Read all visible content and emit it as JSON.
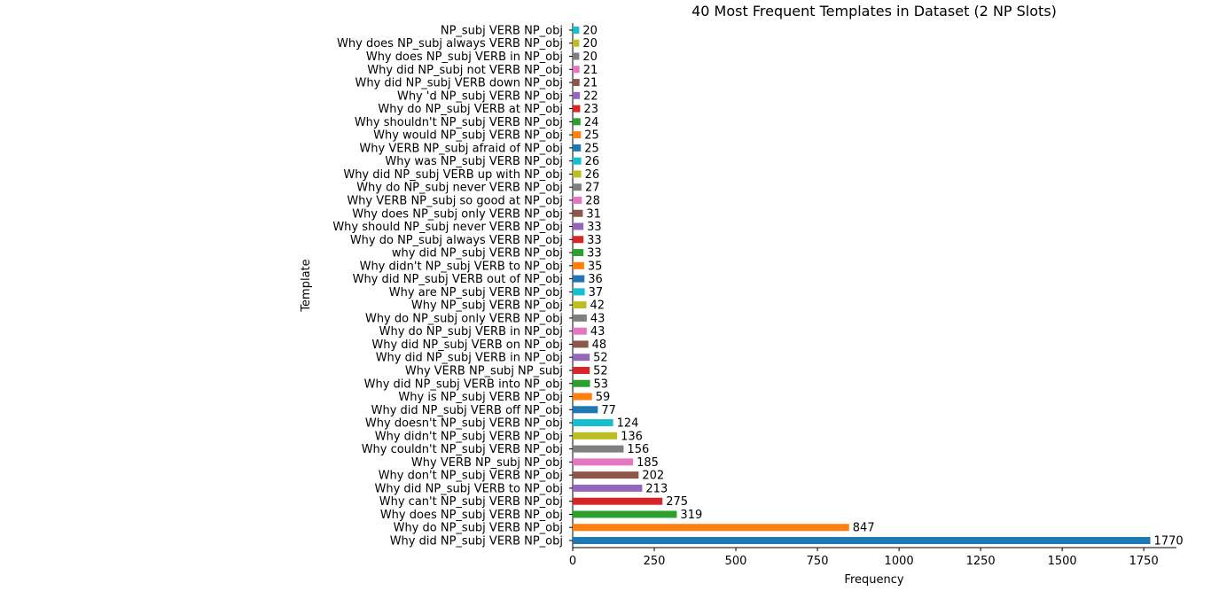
{
  "chart_data": {
    "type": "bar",
    "orientation": "horizontal",
    "title": "40 Most Frequent Templates in Dataset (2 NP Slots)",
    "xlabel": "Frequency",
    "ylabel": "Template",
    "xlim": [
      0,
      1850
    ],
    "xticks": [
      0,
      250,
      500,
      750,
      1000,
      1250,
      1500,
      1750
    ],
    "grid": false,
    "legend": "none",
    "categories": [
      "Why did NP_subj VERB NP_obj",
      "Why do NP_subj VERB NP_obj",
      "Why does NP_subj VERB NP_obj",
      "Why can't NP_subj VERB NP_obj",
      "Why did NP_subj VERB to NP_obj",
      "Why don't NP_subj VERB NP_obj",
      "Why VERB NP_subj NP_obj",
      "Why couldn't NP_subj VERB NP_obj",
      "Why didn't NP_subj VERB NP_obj",
      "Why doesn't NP_subj VERB NP_obj",
      "Why did NP_subj VERB off NP_obj",
      "Why is NP_subj VERB NP_obj",
      "Why did NP_subj VERB into NP_obj",
      "Why VERB NP_subj NP_subj",
      "Why did NP_subj VERB in NP_obj",
      "Why did NP_subj VERB on NP_obj",
      "Why do NP_subj VERB in NP_obj",
      "Why do NP_subj only VERB NP_obj",
      "Why NP_subj VERB NP_obj",
      "Why are NP_subj VERB NP_obj",
      "Why did NP_subj VERB out of NP_obj",
      "Why didn't NP_subj VERB to NP_obj",
      "why did NP_subj VERB NP_obj",
      "Why do NP_subj always VERB NP_obj",
      "Why should NP_subj never VERB NP_obj",
      "Why does NP_subj only VERB NP_obj",
      "Why VERB NP_subj so good at NP_obj",
      "Why do NP_subj never VERB NP_obj",
      "Why did NP_subj VERB up with NP_obj",
      "Why was NP_subj VERB NP_obj",
      "Why VERB NP_subj afraid of NP_obj",
      "Why would NP_subj VERB NP_obj",
      "Why shouldn't NP_subj VERB NP_obj",
      "Why do NP_subj VERB at NP_obj",
      "Why 'd NP_subj VERB NP_obj",
      "Why did NP_subj VERB down NP_obj",
      "Why did NP_subj not VERB NP_obj",
      "Why does NP_subj VERB in NP_obj",
      "Why does NP_subj always VERB NP_obj",
      "NP_subj VERB NP_obj"
    ],
    "values": [
      1770,
      847,
      319,
      275,
      213,
      202,
      185,
      156,
      136,
      124,
      77,
      59,
      53,
      52,
      52,
      48,
      43,
      43,
      42,
      37,
      36,
      35,
      33,
      33,
      33,
      31,
      28,
      27,
      26,
      26,
      25,
      25,
      24,
      23,
      22,
      21,
      21,
      20,
      20,
      20
    ],
    "colors": [
      "#1f77b4",
      "#ff7f0e",
      "#2ca02c",
      "#d62728",
      "#9467bd",
      "#8c564b",
      "#e377c2",
      "#7f7f7f",
      "#bcbd22",
      "#17becf"
    ]
  }
}
